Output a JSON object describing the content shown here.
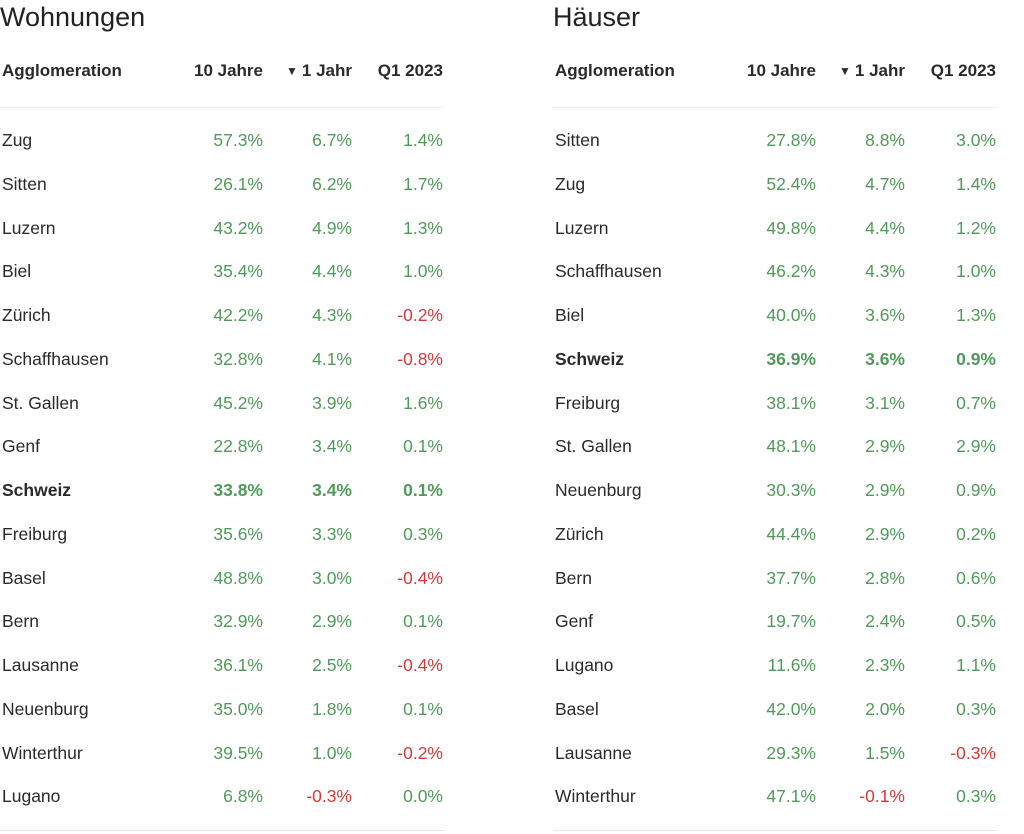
{
  "colors": {
    "positive": "#4f9a5a",
    "negative": "#d23a3a"
  },
  "columns": {
    "name": "Agglomeration",
    "c1": "10 Jahre",
    "c2": "1 Jahr",
    "c3": "Q1 2023",
    "sort_icon": "▼"
  },
  "chart_data": [
    {
      "type": "table",
      "title": "Wohnungen",
      "columns": [
        "Agglomeration",
        "10 Jahre",
        "1 Jahr",
        "Q1 2023"
      ],
      "sorted_by": "1 Jahr",
      "rows": [
        {
          "name": "Zug",
          "v1": "57.3%",
          "v2": "6.7%",
          "v3": "1.4%"
        },
        {
          "name": "Sitten",
          "v1": "26.1%",
          "v2": "6.2%",
          "v3": "1.7%"
        },
        {
          "name": "Luzern",
          "v1": "43.2%",
          "v2": "4.9%",
          "v3": "1.3%"
        },
        {
          "name": "Biel",
          "v1": "35.4%",
          "v2": "4.4%",
          "v3": "1.0%"
        },
        {
          "name": "Zürich",
          "v1": "42.2%",
          "v2": "4.3%",
          "v3": "-0.2%"
        },
        {
          "name": "Schaffhausen",
          "v1": "32.8%",
          "v2": "4.1%",
          "v3": "-0.8%"
        },
        {
          "name": "St. Gallen",
          "v1": "45.2%",
          "v2": "3.9%",
          "v3": "1.6%"
        },
        {
          "name": "Genf",
          "v1": "22.8%",
          "v2": "3.4%",
          "v3": "0.1%"
        },
        {
          "name": "Schweiz",
          "v1": "33.8%",
          "v2": "3.4%",
          "v3": "0.1%",
          "bold": true
        },
        {
          "name": "Freiburg",
          "v1": "35.6%",
          "v2": "3.3%",
          "v3": "0.3%"
        },
        {
          "name": "Basel",
          "v1": "48.8%",
          "v2": "3.0%",
          "v3": "-0.4%"
        },
        {
          "name": "Bern",
          "v1": "32.9%",
          "v2": "2.9%",
          "v3": "0.1%"
        },
        {
          "name": "Lausanne",
          "v1": "36.1%",
          "v2": "2.5%",
          "v3": "-0.4%"
        },
        {
          "name": "Neuenburg",
          "v1": "35.0%",
          "v2": "1.8%",
          "v3": "0.1%"
        },
        {
          "name": "Winterthur",
          "v1": "39.5%",
          "v2": "1.0%",
          "v3": "-0.2%"
        },
        {
          "name": "Lugano",
          "v1": "6.8%",
          "v2": "-0.3%",
          "v3": "0.0%"
        }
      ]
    },
    {
      "type": "table",
      "title": "Häuser",
      "columns": [
        "Agglomeration",
        "10 Jahre",
        "1 Jahr",
        "Q1 2023"
      ],
      "sorted_by": "1 Jahr",
      "rows": [
        {
          "name": "Sitten",
          "v1": "27.8%",
          "v2": "8.8%",
          "v3": "3.0%"
        },
        {
          "name": "Zug",
          "v1": "52.4%",
          "v2": "4.7%",
          "v3": "1.4%"
        },
        {
          "name": "Luzern",
          "v1": "49.8%",
          "v2": "4.4%",
          "v3": "1.2%"
        },
        {
          "name": "Schaffhausen",
          "v1": "46.2%",
          "v2": "4.3%",
          "v3": "1.0%"
        },
        {
          "name": "Biel",
          "v1": "40.0%",
          "v2": "3.6%",
          "v3": "1.3%"
        },
        {
          "name": "Schweiz",
          "v1": "36.9%",
          "v2": "3.6%",
          "v3": "0.9%",
          "bold": true
        },
        {
          "name": "Freiburg",
          "v1": "38.1%",
          "v2": "3.1%",
          "v3": "0.7%"
        },
        {
          "name": "St. Gallen",
          "v1": "48.1%",
          "v2": "2.9%",
          "v3": "2.9%"
        },
        {
          "name": "Neuenburg",
          "v1": "30.3%",
          "v2": "2.9%",
          "v3": "0.9%"
        },
        {
          "name": "Zürich",
          "v1": "44.4%",
          "v2": "2.9%",
          "v3": "0.2%"
        },
        {
          "name": "Bern",
          "v1": "37.7%",
          "v2": "2.8%",
          "v3": "0.6%"
        },
        {
          "name": "Genf",
          "v1": "19.7%",
          "v2": "2.4%",
          "v3": "0.5%"
        },
        {
          "name": "Lugano",
          "v1": "11.6%",
          "v2": "2.3%",
          "v3": "1.1%"
        },
        {
          "name": "Basel",
          "v1": "42.0%",
          "v2": "2.0%",
          "v3": "0.3%"
        },
        {
          "name": "Lausanne",
          "v1": "29.3%",
          "v2": "1.5%",
          "v3": "-0.3%"
        },
        {
          "name": "Winterthur",
          "v1": "47.1%",
          "v2": "-0.1%",
          "v3": "0.3%"
        }
      ]
    }
  ]
}
